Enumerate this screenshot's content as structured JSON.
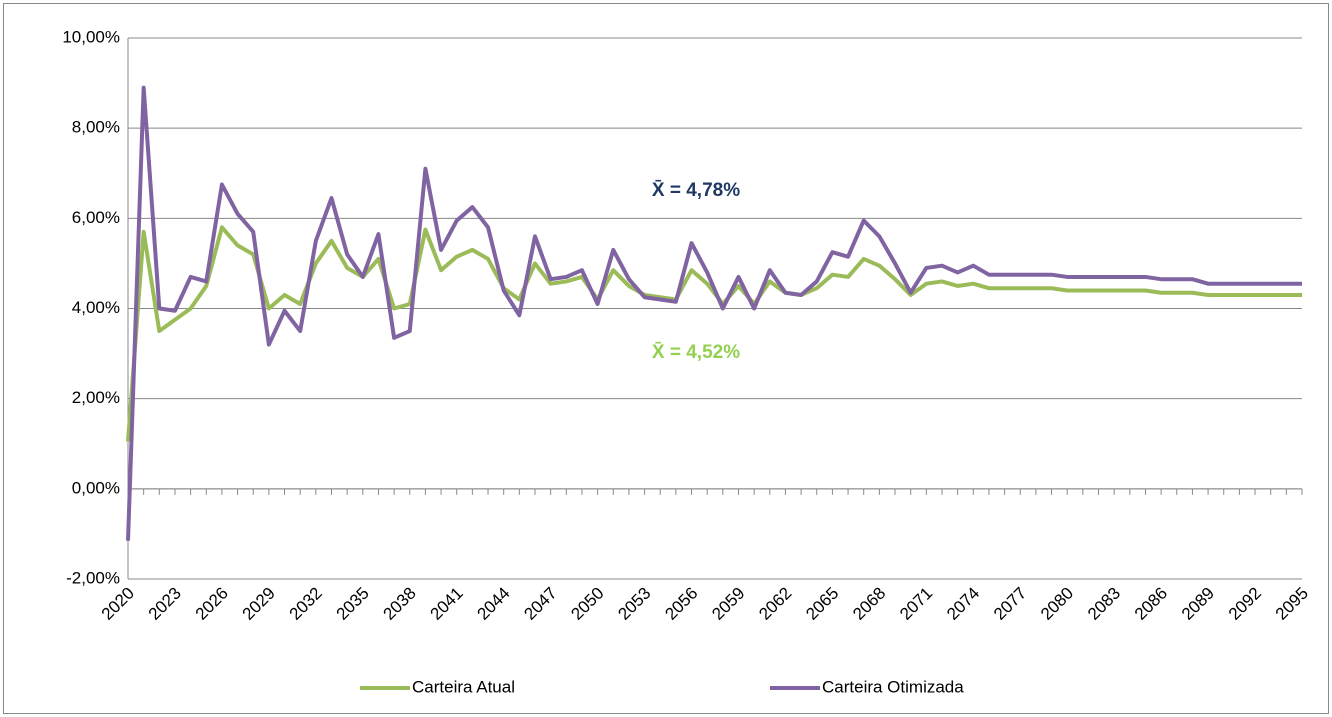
{
  "chart_data": {
    "type": "line",
    "x": [
      2020,
      2021,
      2022,
      2023,
      2024,
      2025,
      2026,
      2027,
      2028,
      2029,
      2030,
      2031,
      2032,
      2033,
      2034,
      2035,
      2036,
      2037,
      2038,
      2039,
      2040,
      2041,
      2042,
      2043,
      2044,
      2045,
      2046,
      2047,
      2048,
      2049,
      2050,
      2051,
      2052,
      2053,
      2054,
      2055,
      2056,
      2057,
      2058,
      2059,
      2060,
      2061,
      2062,
      2063,
      2064,
      2065,
      2066,
      2067,
      2068,
      2069,
      2070,
      2071,
      2072,
      2073,
      2074,
      2075,
      2076,
      2077,
      2078,
      2079,
      2080,
      2081,
      2082,
      2083,
      2084,
      2085,
      2086,
      2087,
      2088,
      2089,
      2090,
      2091,
      2092,
      2093,
      2094,
      2095
    ],
    "xlim": [
      2020,
      2095
    ],
    "xticks": [
      2020,
      2023,
      2026,
      2029,
      2032,
      2035,
      2038,
      2041,
      2044,
      2047,
      2050,
      2053,
      2056,
      2059,
      2062,
      2065,
      2068,
      2071,
      2074,
      2077,
      2080,
      2083,
      2086,
      2089,
      2092,
      2095
    ],
    "ylim": [
      -2,
      10
    ],
    "yticks": [
      {
        "value": -2,
        "label": "-2,00%"
      },
      {
        "value": 0,
        "label": "0,00%"
      },
      {
        "value": 2,
        "label": "2,00%"
      },
      {
        "value": 4,
        "label": "4,00%"
      },
      {
        "value": 6,
        "label": "6,00%"
      },
      {
        "value": 8,
        "label": "8,00%"
      },
      {
        "value": 10,
        "label": "10,00%"
      }
    ],
    "grid": true,
    "legend": "bottom",
    "series": [
      {
        "name": "Carteira Atual",
        "color": "#9bbb59",
        "values": [
          1.05,
          5.7,
          3.5,
          3.75,
          4.0,
          4.5,
          5.8,
          5.4,
          5.2,
          4.0,
          4.3,
          4.1,
          5.0,
          5.5,
          4.9,
          4.7,
          5.1,
          4.0,
          4.1,
          5.75,
          4.85,
          5.15,
          5.3,
          5.1,
          4.45,
          4.2,
          5.0,
          4.55,
          4.6,
          4.7,
          4.2,
          4.85,
          4.5,
          4.3,
          4.25,
          4.2,
          4.85,
          4.55,
          4.1,
          4.5,
          4.1,
          4.6,
          4.35,
          4.3,
          4.45,
          4.75,
          4.7,
          5.1,
          4.95,
          4.65,
          4.3,
          4.55,
          4.6,
          4.5,
          4.55,
          4.45,
          4.45,
          4.45,
          4.45,
          4.45,
          4.4,
          4.4,
          4.4,
          4.4,
          4.4,
          4.4,
          4.35,
          4.35,
          4.35,
          4.3,
          4.3,
          4.3,
          4.3,
          4.3,
          4.3,
          4.3
        ]
      },
      {
        "name": "Carteira Otimizada",
        "color": "#8064a2",
        "values": [
          -1.15,
          8.9,
          4.0,
          3.95,
          4.7,
          4.6,
          6.75,
          6.1,
          5.7,
          3.2,
          3.95,
          3.5,
          5.5,
          6.45,
          5.2,
          4.7,
          5.65,
          3.35,
          3.5,
          7.1,
          5.3,
          5.95,
          6.25,
          5.8,
          4.4,
          3.85,
          5.6,
          4.65,
          4.7,
          4.85,
          4.1,
          5.3,
          4.65,
          4.25,
          4.2,
          4.15,
          5.45,
          4.8,
          4.0,
          4.7,
          4.0,
          4.85,
          4.35,
          4.3,
          4.6,
          5.25,
          5.15,
          5.95,
          5.6,
          5.0,
          4.35,
          4.9,
          4.95,
          4.8,
          4.95,
          4.75,
          4.75,
          4.75,
          4.75,
          4.75,
          4.7,
          4.7,
          4.7,
          4.7,
          4.7,
          4.7,
          4.65,
          4.65,
          4.65,
          4.55,
          4.55,
          4.55,
          4.55,
          4.55,
          4.55,
          4.55
        ]
      }
    ],
    "annotations": [
      {
        "text": "X̄ = 4,78%",
        "color": "#1f3864"
      },
      {
        "text": "X̄ = 4,52%",
        "color": "#92d050"
      }
    ]
  }
}
